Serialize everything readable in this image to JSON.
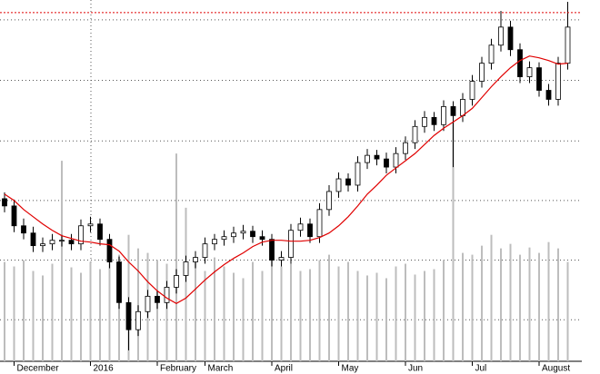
{
  "chart_data": {
    "type": "candlestick",
    "categories": [
      null,
      "December",
      null,
      null,
      null,
      null,
      null,
      null,
      null,
      "2016",
      null,
      null,
      null,
      null,
      null,
      null,
      "February",
      null,
      null,
      null,
      null,
      "March",
      null,
      null,
      null,
      null,
      null,
      null,
      "April",
      null,
      null,
      null,
      null,
      null,
      null,
      "May",
      null,
      null,
      null,
      null,
      null,
      null,
      "Jun",
      null,
      null,
      null,
      null,
      null,
      null,
      "Jul",
      null,
      null,
      null,
      null,
      null,
      null,
      "August",
      null,
      null,
      null
    ],
    "open": [
      180,
      172,
      150,
      142,
      128,
      130,
      134,
      134,
      130,
      150,
      152,
      135,
      110,
      65,
      35,
      55,
      72,
      65,
      82,
      95,
      110,
      115,
      130,
      135,
      138,
      142,
      144,
      138,
      135,
      112,
      115,
      145,
      152,
      138,
      168,
      188,
      202,
      195,
      220,
      228,
      224,
      215,
      230,
      242,
      260,
      270,
      262,
      282,
      272,
      290,
      310,
      330,
      350,
      370,
      345,
      315,
      325,
      300,
      290,
      330
    ],
    "high": [
      187,
      179,
      158,
      149,
      137,
      141,
      140,
      141,
      157,
      160,
      158,
      141,
      116,
      71,
      62,
      79,
      78,
      89,
      102,
      117,
      122,
      137,
      141,
      145,
      149,
      151,
      150,
      145,
      141,
      122,
      152,
      159,
      158,
      175,
      195,
      209,
      208,
      227,
      235,
      234,
      231,
      237,
      249,
      267,
      277,
      276,
      289,
      288,
      297,
      317,
      337,
      357,
      388,
      377,
      352,
      332,
      331,
      307,
      337,
      398
    ],
    "low": [
      165,
      143,
      135,
      121,
      121,
      123,
      127,
      123,
      123,
      143,
      128,
      103,
      58,
      12,
      28,
      48,
      58,
      58,
      75,
      88,
      103,
      108,
      123,
      128,
      131,
      135,
      131,
      128,
      105,
      105,
      108,
      138,
      131,
      131,
      161,
      181,
      188,
      188,
      213,
      217,
      208,
      208,
      223,
      235,
      253,
      255,
      255,
      215,
      265,
      283,
      303,
      323,
      343,
      338,
      308,
      308,
      293,
      283,
      283,
      323
    ],
    "close": [
      172,
      150,
      142,
      128,
      130,
      134,
      134,
      130,
      150,
      152,
      135,
      110,
      65,
      35,
      55,
      72,
      65,
      82,
      95,
      110,
      115,
      130,
      135,
      138,
      142,
      144,
      138,
      135,
      112,
      115,
      145,
      152,
      138,
      168,
      188,
      202,
      195,
      220,
      228,
      224,
      215,
      230,
      242,
      260,
      270,
      262,
      282,
      272,
      290,
      310,
      330,
      350,
      370,
      345,
      315,
      325,
      300,
      290,
      330,
      370
    ],
    "up_color": "#ffffff",
    "down_color": "#000000",
    "moving_average": {
      "color": "#e00000",
      "values": [
        185,
        178,
        168,
        160,
        152,
        145,
        139,
        136,
        133,
        132,
        130,
        129,
        122,
        110,
        100,
        88,
        78,
        70,
        64,
        70,
        80,
        90,
        99,
        107,
        114,
        120,
        127,
        132,
        134,
        134,
        133,
        133,
        134,
        137,
        142,
        150,
        160,
        172,
        185,
        195,
        206,
        214,
        222,
        230,
        240,
        250,
        258,
        265,
        272,
        280,
        292,
        304,
        315,
        325,
        333,
        338,
        336,
        333,
        329,
        330
      ]
    },
    "volume": {
      "color": "#bdbdbd",
      "values": [
        110,
        105,
        112,
        100,
        95,
        108,
        222,
        104,
        98,
        110,
        102,
        115,
        118,
        140,
        125,
        120,
        112,
        108,
        230,
        170,
        110,
        100,
        115,
        105,
        98,
        92,
        110,
        100,
        118,
        105,
        108,
        100,
        102,
        112,
        118,
        105,
        110,
        100,
        95,
        98,
        92,
        105,
        108,
        96,
        100,
        102,
        112,
        265,
        120,
        118,
        128,
        140,
        125,
        130,
        118,
        126,
        120,
        132,
        125,
        110
      ]
    },
    "ylim": [
      0,
      400
    ],
    "y2lim": [
      0,
      400
    ],
    "yticks": [
      46,
      112,
      178,
      244,
      311,
      378
    ],
    "grid": true,
    "reference_line": {
      "value": 386,
      "color": "#e00000"
    }
  }
}
